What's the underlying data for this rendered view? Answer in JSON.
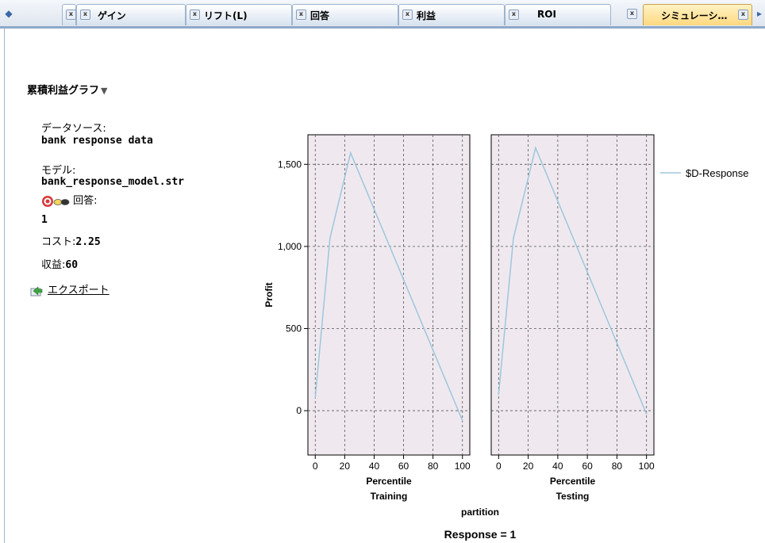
{
  "tabs": [
    {
      "label": ""
    },
    {
      "label": "ゲイン"
    },
    {
      "label": "リフト(L)"
    },
    {
      "label": "回答"
    },
    {
      "label": "利益"
    },
    {
      "label": "ROI"
    },
    {
      "label": "シミュレーシ…",
      "active": true
    }
  ],
  "section": {
    "title": "累積利益グラフ"
  },
  "info": {
    "datasource_label": "データソース:",
    "datasource_value": "bank response data",
    "model_label": "モデル:",
    "model_value": "bank_response_model.str",
    "response_label": "回答:",
    "response_value": "1",
    "cost_label": "コスト:",
    "cost_value": "2.25",
    "revenue_label": "収益:",
    "revenue_value": "60",
    "export_label": "エクスポート"
  },
  "chart_data": {
    "type": "line",
    "panels": [
      {
        "name": "Training",
        "x": [
          0,
          10,
          24,
          100
        ],
        "y": [
          80,
          1050,
          1570,
          -60
        ]
      },
      {
        "name": "Testing",
        "x": [
          0,
          10,
          25,
          100
        ],
        "y": [
          100,
          1050,
          1600,
          -20
        ]
      }
    ],
    "series_name": "$D-Response",
    "series_color": "#9ec6dc",
    "panel_bg": "#efe9ef",
    "xlabel": "Percentile",
    "ylabel": "Profit",
    "facet_label": "partition",
    "footer": "Response = 1",
    "xlim": [
      -5,
      105
    ],
    "ylim": [
      -270,
      1680
    ],
    "xticks": [
      0,
      20,
      40,
      60,
      80,
      100
    ],
    "yticks": [
      0,
      500,
      1000,
      1500
    ],
    "ytick_labels": [
      "0",
      "500",
      "1,000",
      "1,500"
    ],
    "grid": true,
    "legend_position": "right"
  }
}
